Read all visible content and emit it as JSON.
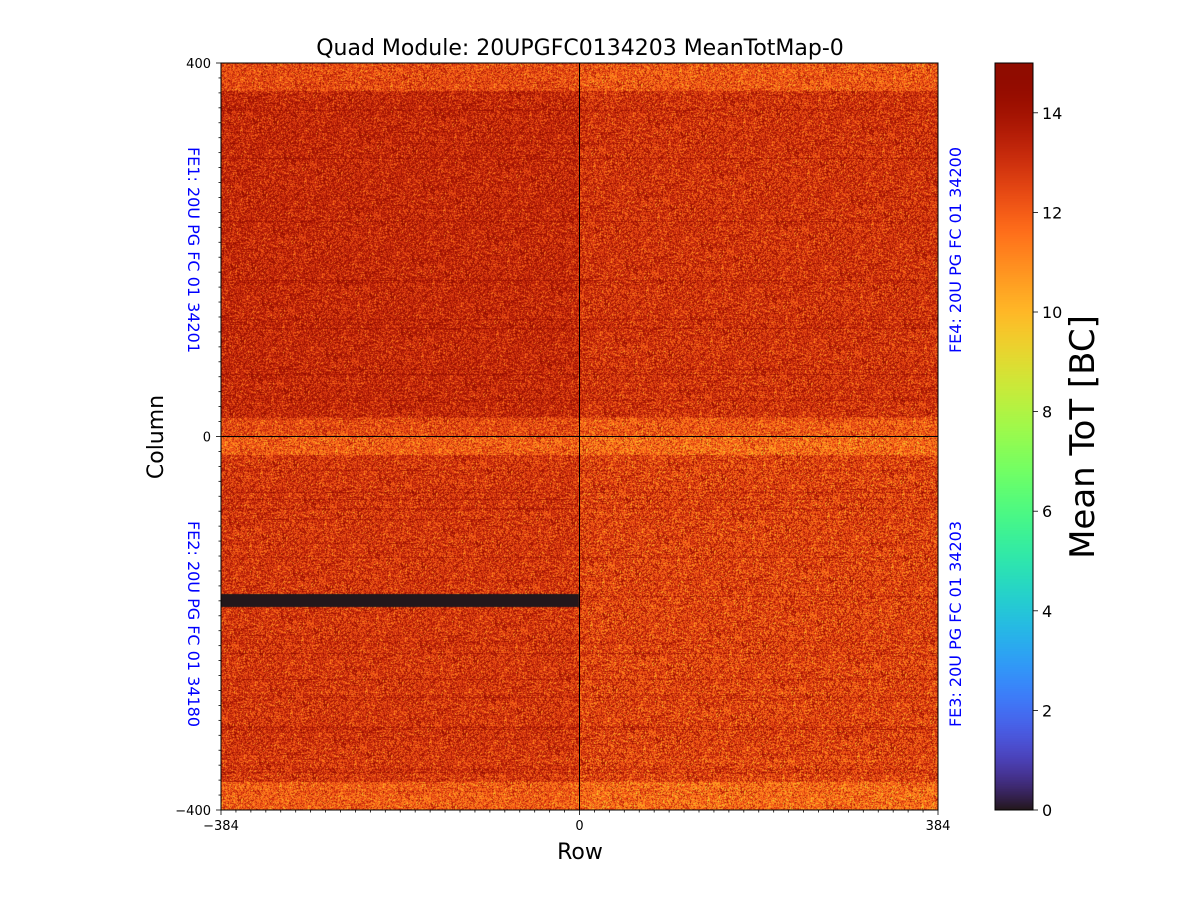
{
  "chart_data": {
    "type": "heatmap",
    "title": "Quad Module: 20UPGFC0134203 MeanTotMap-0",
    "xlabel": "Row",
    "ylabel": "Column",
    "xlim": [
      -384,
      384
    ],
    "ylim": [
      -400,
      400
    ],
    "x_ticks": [
      "−384",
      "0",
      "384"
    ],
    "x_tick_values": [
      -384,
      0,
      384
    ],
    "y_ticks": [
      "400",
      "0",
      "−400"
    ],
    "y_tick_values": [
      400,
      0,
      -400
    ],
    "colorbar": {
      "label": "Mean ToT [BC]",
      "range": [
        0,
        15
      ],
      "colormap": "turbo",
      "ticks": [
        "0",
        "2",
        "4",
        "6",
        "8",
        "10",
        "12",
        "14"
      ],
      "tick_values": [
        0,
        2,
        4,
        6,
        8,
        10,
        12,
        14
      ]
    },
    "front_ends": [
      {
        "label": "FE1: 20U PG FC 01 34201",
        "quadrant": "top-left",
        "x_range": [
          -384,
          0
        ],
        "y_range": [
          0,
          400
        ],
        "mean_tot": 13.3,
        "spread": 1.6
      },
      {
        "label": "FE4: 20U PG FC 01 34200",
        "quadrant": "top-right",
        "x_range": [
          0,
          384
        ],
        "y_range": [
          0,
          400
        ],
        "mean_tot": 13.0,
        "spread": 1.7
      },
      {
        "label": "FE2: 20U PG FC 01 34180",
        "quadrant": "bottom-left",
        "x_range": [
          -384,
          0
        ],
        "y_range": [
          -400,
          0
        ],
        "mean_tot": 12.9,
        "spread": 1.7
      },
      {
        "label": "FE3: 20U PG FC 01 34203",
        "quadrant": "bottom-right",
        "x_range": [
          0,
          384
        ],
        "y_range": [
          -400,
          0
        ],
        "mean_tot": 12.6,
        "spread": 1.9
      }
    ],
    "dead_region": {
      "x_range": [
        -384,
        0
      ],
      "y_range": [
        -183,
        -169
      ],
      "value": 0
    },
    "fe_label_color": "#0000ff",
    "grid": false
  }
}
